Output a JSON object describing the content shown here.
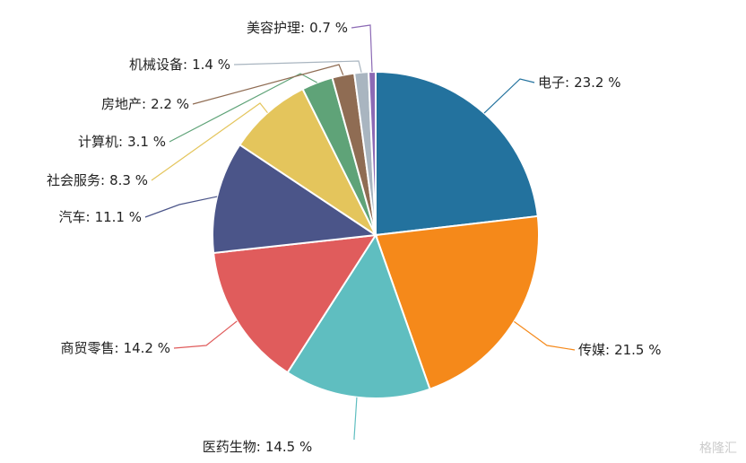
{
  "chart_data": {
    "type": "pie",
    "categories": [
      "电子:",
      "传媒:",
      "医药生物:",
      "商贸零售:",
      "汽车:",
      "社会服务:",
      "计算机:",
      "房地产:",
      "机械设备:",
      "美容护理:"
    ],
    "values": [
      23.2,
      21.5,
      14.5,
      14.2,
      11.1,
      8.3,
      3.1,
      2.2,
      1.4,
      0.7
    ],
    "value_labels": [
      "23.2 %",
      "21.5 %",
      "14.5 %",
      "14.2 %",
      "11.1 %",
      "8.3 %",
      "3.1 %",
      "2.2 %",
      "1.4 %",
      "0.7 %"
    ],
    "colors": [
      "#23729e",
      "#f5891a",
      "#5fbec0",
      "#e05c5c",
      "#4b5589",
      "#e4c55c",
      "#5fa378",
      "#8f6c53",
      "#a9b5c0",
      "#8c6ab5"
    ],
    "watermark": "格隆汇"
  }
}
